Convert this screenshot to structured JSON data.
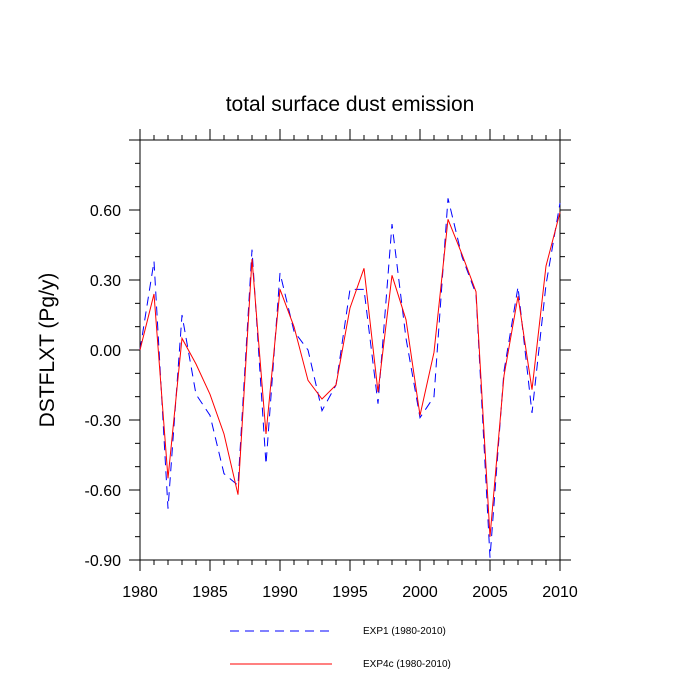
{
  "chart_data": {
    "type": "line",
    "title": "total surface dust emission",
    "xlabel": "",
    "ylabel": "DSTFLXT  (Pg/y)",
    "xlim": [
      1980,
      2010
    ],
    "ylim": [
      -0.9,
      0.9
    ],
    "x_ticks": [
      1980,
      1985,
      1990,
      1995,
      2000,
      2005,
      2010
    ],
    "y_ticks": [
      -0.9,
      -0.6,
      -0.3,
      0.0,
      0.3,
      0.6
    ],
    "x_tick_labels": [
      "1980",
      "1985",
      "1990",
      "1995",
      "2000",
      "2005",
      "2010"
    ],
    "y_tick_labels": [
      "-0.90",
      "-0.60",
      "-0.30",
      "0.00",
      "0.30",
      "0.60"
    ],
    "grid": false,
    "legend_position": "bottom",
    "x": [
      1980,
      1981,
      1982,
      1983,
      1984,
      1985,
      1986,
      1987,
      1988,
      1989,
      1990,
      1991,
      1992,
      1993,
      1994,
      1995,
      1996,
      1997,
      1998,
      1999,
      2000,
      2001,
      2002,
      2003,
      2004,
      2005,
      2006,
      2007,
      2008,
      2009,
      2010
    ],
    "series": [
      {
        "name": "EXP1 (1980-2010)",
        "color": "#0000ff",
        "style": "dashed",
        "values": [
          0.0,
          0.38,
          -0.68,
          0.15,
          -0.19,
          -0.28,
          -0.53,
          -0.58,
          0.43,
          -0.49,
          0.33,
          0.08,
          0.0,
          -0.26,
          -0.15,
          0.26,
          0.26,
          -0.23,
          0.54,
          0.05,
          -0.29,
          -0.2,
          0.65,
          0.4,
          0.24,
          -0.89,
          -0.09,
          0.27,
          -0.27,
          0.28,
          0.63
        ]
      },
      {
        "name": "EXP4c (1980-2010)",
        "color": "#ff0000",
        "style": "solid",
        "values": [
          0.0,
          0.24,
          -0.55,
          0.05,
          -0.06,
          -0.19,
          -0.36,
          -0.62,
          0.39,
          -0.36,
          0.26,
          0.1,
          -0.13,
          -0.21,
          -0.15,
          0.18,
          0.35,
          -0.18,
          0.32,
          0.13,
          -0.28,
          -0.01,
          0.56,
          0.41,
          0.25,
          -0.8,
          -0.11,
          0.23,
          -0.17,
          0.36,
          0.59
        ]
      }
    ]
  }
}
